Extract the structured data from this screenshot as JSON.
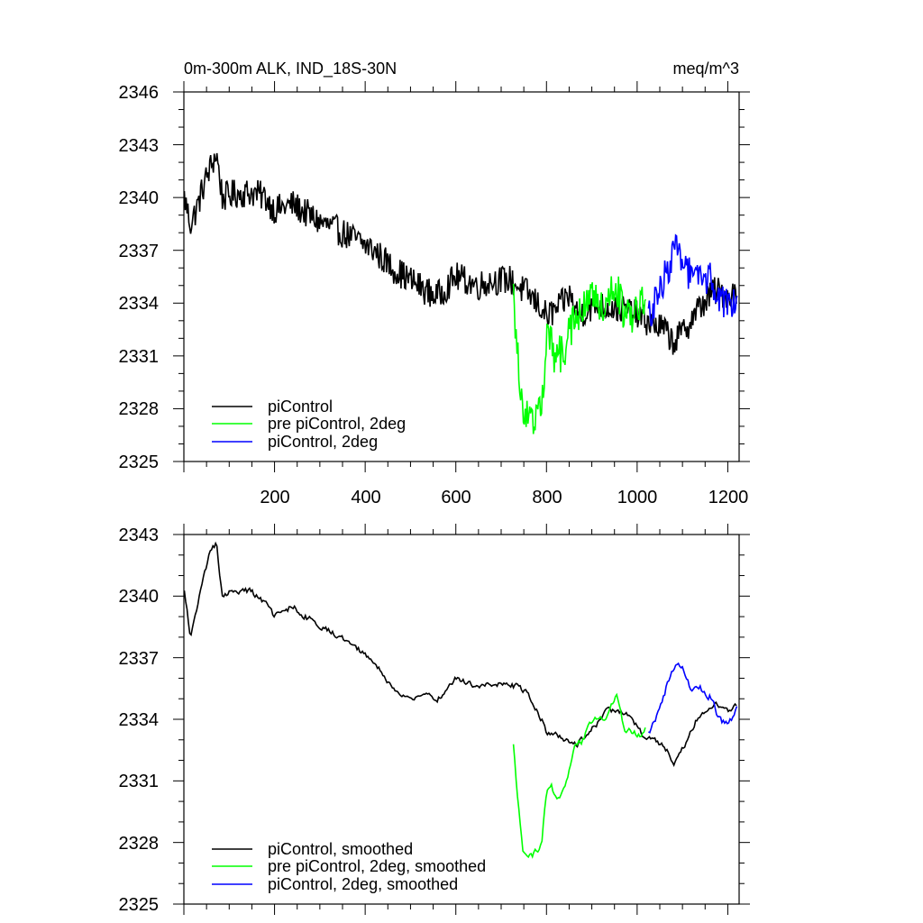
{
  "chart_data": [
    {
      "type": "line",
      "title": "0m-300m ALK, IND_18S-30N",
      "units": "meq/m^3",
      "xlim": [
        0,
        1225
      ],
      "ylim": [
        2325,
        2346
      ],
      "yticks": [
        2325,
        2328,
        2331,
        2334,
        2337,
        2340,
        2343,
        2346
      ],
      "xticks": [
        200,
        400,
        600,
        800,
        1000,
        1200
      ],
      "show_x_labels": true,
      "legend_position": "lower-left",
      "series": [
        {
          "name": "piControl",
          "color": "#000000",
          "noise": 0.85,
          "anchors": [
            [
              1,
              2340.0
            ],
            [
              15,
              2338.5
            ],
            [
              30,
              2339.5
            ],
            [
              45,
              2340.8
            ],
            [
              60,
              2341.8
            ],
            [
              72,
              2342.5
            ],
            [
              85,
              2340.0
            ],
            [
              110,
              2340.2
            ],
            [
              150,
              2340.3
            ],
            [
              180,
              2340.0
            ],
            [
              200,
              2339.3
            ],
            [
              240,
              2339.6
            ],
            [
              300,
              2338.6
            ],
            [
              350,
              2338.0
            ],
            [
              380,
              2337.6
            ],
            [
              420,
              2337.0
            ],
            [
              460,
              2336.0
            ],
            [
              500,
              2335.3
            ],
            [
              540,
              2334.6
            ],
            [
              560,
              2334.4
            ],
            [
              600,
              2335.5
            ],
            [
              650,
              2335.0
            ],
            [
              680,
              2335.3
            ],
            [
              720,
              2335.3
            ],
            [
              760,
              2334.5
            ],
            [
              790,
              2333.7
            ],
            [
              800,
              2333.2
            ],
            [
              830,
              2333.8
            ],
            [
              850,
              2334.5
            ],
            [
              870,
              2333.3
            ],
            [
              900,
              2333.8
            ],
            [
              940,
              2333.8
            ],
            [
              980,
              2333.6
            ],
            [
              1020,
              2333.0
            ],
            [
              1060,
              2332.5
            ],
            [
              1080,
              2331.8
            ],
            [
              1100,
              2332.3
            ],
            [
              1130,
              2333.5
            ],
            [
              1170,
              2334.7
            ],
            [
              1200,
              2334.5
            ],
            [
              1220,
              2334.5
            ]
          ]
        },
        {
          "name": "pre piControl, 2deg",
          "color": "#00ff00",
          "noise": 1.1,
          "anchors": [
            [
              727,
              2334.6
            ],
            [
              735,
              2331.2
            ],
            [
              750,
              2327.8
            ],
            [
              770,
              2327.0
            ],
            [
              790,
              2328.5
            ],
            [
              800,
              2331.8
            ],
            [
              810,
              2332.0
            ],
            [
              820,
              2330.7
            ],
            [
              840,
              2331.5
            ],
            [
              860,
              2333.0
            ],
            [
              880,
              2333.5
            ],
            [
              900,
              2334.3
            ],
            [
              930,
              2334.0
            ],
            [
              955,
              2335.0
            ],
            [
              970,
              2333.2
            ],
            [
              1000,
              2333.5
            ],
            [
              1020,
              2334.3
            ]
          ]
        },
        {
          "name": "piControl, 2deg",
          "color": "#0000ff",
          "noise": 1.0,
          "anchors": [
            [
              1025,
              2333.2
            ],
            [
              1040,
              2334.0
            ],
            [
              1060,
              2335.5
            ],
            [
              1085,
              2337.0
            ],
            [
              1100,
              2336.8
            ],
            [
              1120,
              2335.2
            ],
            [
              1140,
              2335.3
            ],
            [
              1160,
              2335.5
            ],
            [
              1180,
              2334.0
            ],
            [
              1200,
              2334.0
            ],
            [
              1222,
              2334.5
            ]
          ]
        }
      ]
    },
    {
      "type": "line",
      "title": "",
      "units": "",
      "xlim": [
        0,
        1225
      ],
      "ylim": [
        2325,
        2343
      ],
      "yticks": [
        2325,
        2328,
        2331,
        2334,
        2337,
        2340,
        2343
      ],
      "xticks": [
        200,
        400,
        600,
        800,
        1000,
        1200
      ],
      "show_x_labels": false,
      "legend_position": "lower-left",
      "series": [
        {
          "name": "piControl, smoothed",
          "color": "#000000",
          "noise": 0.3,
          "anchors": [
            [
              1,
              2340.2
            ],
            [
              15,
              2338.0
            ],
            [
              30,
              2339.5
            ],
            [
              45,
              2341.0
            ],
            [
              60,
              2342.3
            ],
            [
              72,
              2342.5
            ],
            [
              85,
              2340.0
            ],
            [
              110,
              2340.3
            ],
            [
              150,
              2340.2
            ],
            [
              180,
              2339.6
            ],
            [
              200,
              2339.0
            ],
            [
              240,
              2339.5
            ],
            [
              300,
              2338.5
            ],
            [
              350,
              2338.0
            ],
            [
              380,
              2337.5
            ],
            [
              420,
              2336.8
            ],
            [
              460,
              2335.5
            ],
            [
              500,
              2335.0
            ],
            [
              540,
              2335.2
            ],
            [
              560,
              2335.0
            ],
            [
              600,
              2336.0
            ],
            [
              650,
              2335.5
            ],
            [
              680,
              2335.8
            ],
            [
              720,
              2335.7
            ],
            [
              760,
              2335.3
            ],
            [
              790,
              2334.0
            ],
            [
              800,
              2333.4
            ],
            [
              830,
              2333.2
            ],
            [
              850,
              2333.0
            ],
            [
              870,
              2332.8
            ],
            [
              900,
              2333.5
            ],
            [
              940,
              2334.5
            ],
            [
              980,
              2334.2
            ],
            [
              1020,
              2333.0
            ],
            [
              1060,
              2332.8
            ],
            [
              1080,
              2331.8
            ],
            [
              1100,
              2332.5
            ],
            [
              1130,
              2334.0
            ],
            [
              1170,
              2334.8
            ],
            [
              1200,
              2334.5
            ],
            [
              1220,
              2334.6
            ]
          ]
        },
        {
          "name": "pre piControl, 2deg, smoothed",
          "color": "#00ff00",
          "noise": 0.35,
          "anchors": [
            [
              727,
              2332.7
            ],
            [
              735,
              2330.5
            ],
            [
              748,
              2327.5
            ],
            [
              770,
              2327.3
            ],
            [
              790,
              2328.0
            ],
            [
              800,
              2330.5
            ],
            [
              810,
              2331.0
            ],
            [
              820,
              2330.2
            ],
            [
              840,
              2330.5
            ],
            [
              860,
              2332.5
            ],
            [
              880,
              2333.0
            ],
            [
              900,
              2334.0
            ],
            [
              930,
              2334.0
            ],
            [
              955,
              2335.3
            ],
            [
              970,
              2333.5
            ],
            [
              1000,
              2333.2
            ],
            [
              1020,
              2333.5
            ]
          ]
        },
        {
          "name": "piControl, 2deg, smoothed",
          "color": "#0000ff",
          "noise": 0.35,
          "anchors": [
            [
              1025,
              2333.3
            ],
            [
              1040,
              2334.0
            ],
            [
              1060,
              2335.3
            ],
            [
              1085,
              2336.8
            ],
            [
              1100,
              2336.5
            ],
            [
              1120,
              2335.3
            ],
            [
              1140,
              2335.5
            ],
            [
              1160,
              2335.2
            ],
            [
              1180,
              2334.0
            ],
            [
              1200,
              2333.7
            ],
            [
              1222,
              2334.6
            ]
          ]
        }
      ]
    }
  ]
}
